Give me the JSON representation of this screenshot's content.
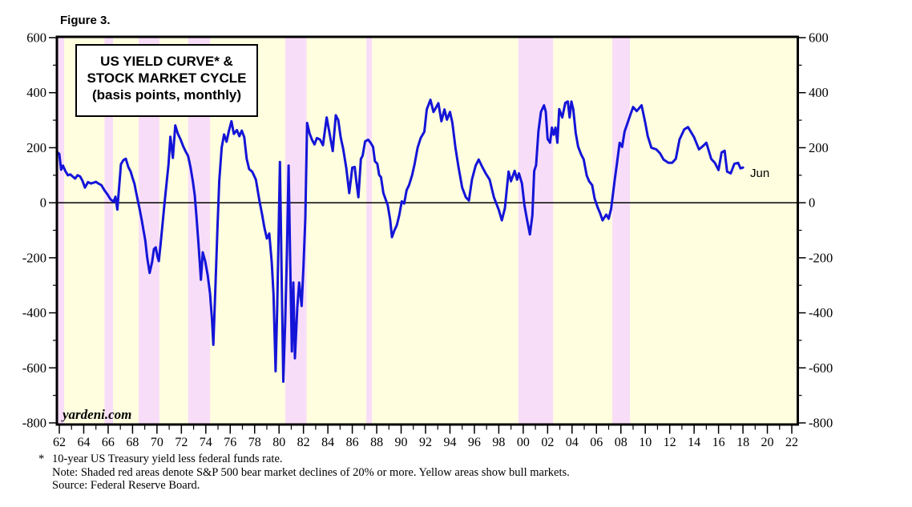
{
  "figure_label": "Figure 3.",
  "footnotes": {
    "asterisk": "*",
    "line1": "10-year US Treasury yield less federal funds rate.",
    "line2": "Note: Shaded red areas denote S&P 500 bear market declines of 20% or more. Yellow areas show bull markets.",
    "line3": "Source: Federal Reserve Board."
  },
  "chart_data": {
    "type": "line",
    "title": [
      "US YIELD CURVE* &",
      "STOCK MARKET CYCLE",
      "(basis points, monthly)"
    ],
    "watermark": "yardeni.com",
    "end_label": "Jun",
    "x_axis": {
      "start": 1962,
      "end": 2022,
      "label_step": 2,
      "tick_labels": [
        "62",
        "64",
        "66",
        "68",
        "70",
        "72",
        "74",
        "76",
        "78",
        "80",
        "82",
        "84",
        "86",
        "88",
        "90",
        "92",
        "94",
        "96",
        "98",
        "00",
        "02",
        "04",
        "06",
        "08",
        "10",
        "12",
        "14",
        "16",
        "18",
        "20",
        "22"
      ]
    },
    "y_axis": {
      "min": -800,
      "max": 600,
      "major_step": 200,
      "minor_step": 100,
      "tick_labels": [
        "600",
        "400",
        "200",
        "0",
        "-200",
        "-400",
        "-600",
        "-800"
      ],
      "both_sides": true
    },
    "zero_line": true,
    "colors": {
      "bull_background": "#ffffe0",
      "bear_band": "#f8ddf8",
      "line": "#1414d8",
      "frame": "#000000",
      "title_box_fill": "#ffffff"
    },
    "bear_market_bands": [
      [
        1961.75,
        1962.4
      ],
      [
        1965.7,
        1966.4
      ],
      [
        1968.5,
        1970.2
      ],
      [
        1972.55,
        1974.35
      ],
      [
        1980.5,
        1982.25
      ],
      [
        1987.15,
        1987.6
      ],
      [
        1999.6,
        2002.45
      ],
      [
        2007.3,
        2008.75
      ]
    ],
    "series": {
      "name": "US yield curve: 10-year Treasury yield less federal funds rate (bp)",
      "points": [
        [
          1961.8,
          185
        ],
        [
          1962.0,
          177
        ],
        [
          1962.15,
          120
        ],
        [
          1962.3,
          135
        ],
        [
          1962.5,
          115
        ],
        [
          1962.7,
          100
        ],
        [
          1962.9,
          103
        ],
        [
          1963.1,
          95
        ],
        [
          1963.3,
          88
        ],
        [
          1963.5,
          100
        ],
        [
          1963.7,
          96
        ],
        [
          1963.9,
          80
        ],
        [
          1964.1,
          55
        ],
        [
          1964.35,
          75
        ],
        [
          1964.6,
          70
        ],
        [
          1964.8,
          73
        ],
        [
          1965.0,
          76
        ],
        [
          1965.2,
          70
        ],
        [
          1965.45,
          64
        ],
        [
          1965.7,
          45
        ],
        [
          1965.95,
          30
        ],
        [
          1966.2,
          12
        ],
        [
          1966.45,
          4
        ],
        [
          1966.6,
          22
        ],
        [
          1966.75,
          -25
        ],
        [
          1966.9,
          55
        ],
        [
          1967.05,
          140
        ],
        [
          1967.25,
          155
        ],
        [
          1967.45,
          160
        ],
        [
          1967.65,
          130
        ],
        [
          1967.85,
          113
        ],
        [
          1968.0,
          90
        ],
        [
          1968.15,
          70
        ],
        [
          1968.35,
          26
        ],
        [
          1968.55,
          -17
        ],
        [
          1968.75,
          -62
        ],
        [
          1968.9,
          -101
        ],
        [
          1969.05,
          -139
        ],
        [
          1969.2,
          -200
        ],
        [
          1969.4,
          -255
        ],
        [
          1969.6,
          -215
        ],
        [
          1969.75,
          -168
        ],
        [
          1969.9,
          -162
        ],
        [
          1970.05,
          -197
        ],
        [
          1970.15,
          -212
        ],
        [
          1970.3,
          -150
        ],
        [
          1970.45,
          -81
        ],
        [
          1970.6,
          -10
        ],
        [
          1970.75,
          55
        ],
        [
          1970.95,
          140
        ],
        [
          1971.1,
          240
        ],
        [
          1971.3,
          163
        ],
        [
          1971.5,
          281
        ],
        [
          1971.7,
          252
        ],
        [
          1971.95,
          228
        ],
        [
          1972.15,
          205
        ],
        [
          1972.35,
          186
        ],
        [
          1972.55,
          170
        ],
        [
          1972.75,
          128
        ],
        [
          1972.95,
          75
        ],
        [
          1973.1,
          25
        ],
        [
          1973.25,
          -60
        ],
        [
          1973.4,
          -150
        ],
        [
          1973.6,
          -280
        ],
        [
          1973.75,
          -180
        ],
        [
          1973.95,
          -212
        ],
        [
          1974.15,
          -262
        ],
        [
          1974.35,
          -330
        ],
        [
          1974.5,
          -420
        ],
        [
          1974.62,
          -516
        ],
        [
          1974.8,
          -290
        ],
        [
          1974.95,
          -95
        ],
        [
          1975.1,
          80
        ],
        [
          1975.3,
          200
        ],
        [
          1975.5,
          248
        ],
        [
          1975.7,
          222
        ],
        [
          1975.9,
          262
        ],
        [
          1976.1,
          296
        ],
        [
          1976.3,
          250
        ],
        [
          1976.55,
          264
        ],
        [
          1976.75,
          242
        ],
        [
          1976.95,
          262
        ],
        [
          1977.15,
          238
        ],
        [
          1977.35,
          160
        ],
        [
          1977.55,
          122
        ],
        [
          1977.8,
          113
        ],
        [
          1978.1,
          84
        ],
        [
          1978.4,
          6
        ],
        [
          1978.6,
          -40
        ],
        [
          1978.8,
          -90
        ],
        [
          1979.0,
          -130
        ],
        [
          1979.2,
          -112
        ],
        [
          1979.4,
          -217
        ],
        [
          1979.55,
          -333
        ],
        [
          1979.72,
          -612
        ],
        [
          1979.85,
          -380
        ],
        [
          1979.95,
          -150
        ],
        [
          1980.07,
          148
        ],
        [
          1980.2,
          -220
        ],
        [
          1980.35,
          -650
        ],
        [
          1980.5,
          -440
        ],
        [
          1980.65,
          -175
        ],
        [
          1980.78,
          135
        ],
        [
          1980.92,
          -230
        ],
        [
          1981.05,
          -540
        ],
        [
          1981.17,
          -290
        ],
        [
          1981.3,
          -565
        ],
        [
          1981.5,
          -380
        ],
        [
          1981.65,
          -290
        ],
        [
          1981.85,
          -375
        ],
        [
          1982.0,
          -230
        ],
        [
          1982.15,
          -55
        ],
        [
          1982.3,
          290
        ],
        [
          1982.5,
          252
        ],
        [
          1982.7,
          229
        ],
        [
          1982.9,
          212
        ],
        [
          1983.1,
          235
        ],
        [
          1983.35,
          230
        ],
        [
          1983.6,
          209
        ],
        [
          1983.9,
          310
        ],
        [
          1984.1,
          261
        ],
        [
          1984.4,
          188
        ],
        [
          1984.65,
          318
        ],
        [
          1984.85,
          300
        ],
        [
          1985.05,
          238
        ],
        [
          1985.25,
          196
        ],
        [
          1985.5,
          128
        ],
        [
          1985.75,
          35
        ],
        [
          1986.0,
          128
        ],
        [
          1986.2,
          130
        ],
        [
          1986.35,
          72
        ],
        [
          1986.5,
          20
        ],
        [
          1986.7,
          159
        ],
        [
          1986.85,
          171
        ],
        [
          1987.05,
          223
        ],
        [
          1987.3,
          229
        ],
        [
          1987.5,
          218
        ],
        [
          1987.7,
          203
        ],
        [
          1987.85,
          151
        ],
        [
          1988.05,
          142
        ],
        [
          1988.2,
          101
        ],
        [
          1988.35,
          93
        ],
        [
          1988.55,
          35
        ],
        [
          1988.9,
          -9
        ],
        [
          1989.1,
          -61
        ],
        [
          1989.25,
          -125
        ],
        [
          1989.45,
          -100
        ],
        [
          1989.65,
          -81
        ],
        [
          1989.85,
          -45
        ],
        [
          1990.05,
          5
        ],
        [
          1990.25,
          -3
        ],
        [
          1990.45,
          46
        ],
        [
          1990.65,
          64
        ],
        [
          1990.9,
          100
        ],
        [
          1991.1,
          140
        ],
        [
          1991.35,
          200
        ],
        [
          1991.6,
          235
        ],
        [
          1991.9,
          258
        ],
        [
          1992.1,
          339
        ],
        [
          1992.4,
          374
        ],
        [
          1992.65,
          330
        ],
        [
          1992.85,
          345
        ],
        [
          1993.05,
          362
        ],
        [
          1993.3,
          296
        ],
        [
          1993.55,
          339
        ],
        [
          1993.75,
          302
        ],
        [
          1994.0,
          330
        ],
        [
          1994.2,
          290
        ],
        [
          1994.45,
          200
        ],
        [
          1994.7,
          130
        ],
        [
          1995.0,
          55
        ],
        [
          1995.3,
          20
        ],
        [
          1995.55,
          8
        ],
        [
          1995.8,
          84
        ],
        [
          1996.1,
          135
        ],
        [
          1996.35,
          157
        ],
        [
          1996.65,
          130
        ],
        [
          1996.95,
          105
        ],
        [
          1997.25,
          84
        ],
        [
          1997.6,
          20
        ],
        [
          1998.0,
          -26
        ],
        [
          1998.25,
          -64
        ],
        [
          1998.5,
          -20
        ],
        [
          1998.8,
          113
        ],
        [
          1999.0,
          78
        ],
        [
          1999.3,
          116
        ],
        [
          1999.5,
          84
        ],
        [
          1999.65,
          107
        ],
        [
          1999.9,
          70
        ],
        [
          2000.1,
          -9
        ],
        [
          2000.3,
          -58
        ],
        [
          2000.55,
          -115
        ],
        [
          2000.75,
          -46
        ],
        [
          2000.9,
          116
        ],
        [
          2001.05,
          136
        ],
        [
          2001.25,
          261
        ],
        [
          2001.45,
          330
        ],
        [
          2001.7,
          354
        ],
        [
          2001.85,
          331
        ],
        [
          2002.0,
          232
        ],
        [
          2002.2,
          218
        ],
        [
          2002.35,
          273
        ],
        [
          2002.5,
          247
        ],
        [
          2002.65,
          273
        ],
        [
          2002.8,
          218
        ],
        [
          2002.95,
          340
        ],
        [
          2003.2,
          310
        ],
        [
          2003.45,
          363
        ],
        [
          2003.65,
          368
        ],
        [
          2003.8,
          310
        ],
        [
          2003.95,
          368
        ],
        [
          2004.1,
          340
        ],
        [
          2004.3,
          253
        ],
        [
          2004.5,
          204
        ],
        [
          2004.75,
          175
        ],
        [
          2004.95,
          158
        ],
        [
          2005.2,
          99
        ],
        [
          2005.4,
          78
        ],
        [
          2005.65,
          64
        ],
        [
          2005.85,
          15
        ],
        [
          2006.1,
          -17
        ],
        [
          2006.3,
          -38
        ],
        [
          2006.5,
          -64
        ],
        [
          2006.8,
          -43
        ],
        [
          2007.0,
          -58
        ],
        [
          2007.2,
          -23
        ],
        [
          2007.5,
          84
        ],
        [
          2007.7,
          151
        ],
        [
          2007.9,
          218
        ],
        [
          2008.1,
          203
        ],
        [
          2008.3,
          258
        ],
        [
          2008.7,
          310
        ],
        [
          2009.0,
          348
        ],
        [
          2009.3,
          333
        ],
        [
          2009.7,
          354
        ],
        [
          2010.0,
          290
        ],
        [
          2010.2,
          243
        ],
        [
          2010.5,
          200
        ],
        [
          2010.9,
          194
        ],
        [
          2011.2,
          180
        ],
        [
          2011.5,
          157
        ],
        [
          2011.9,
          145
        ],
        [
          2012.2,
          145
        ],
        [
          2012.5,
          160
        ],
        [
          2012.8,
          230
        ],
        [
          2013.2,
          267
        ],
        [
          2013.5,
          275
        ],
        [
          2014.0,
          238
        ],
        [
          2014.4,
          194
        ],
        [
          2014.8,
          209
        ],
        [
          2015.0,
          218
        ],
        [
          2015.4,
          159
        ],
        [
          2015.7,
          145
        ],
        [
          2016.0,
          119
        ],
        [
          2016.25,
          183
        ],
        [
          2016.5,
          189
        ],
        [
          2016.7,
          113
        ],
        [
          2017.0,
          107
        ],
        [
          2017.3,
          142
        ],
        [
          2017.6,
          145
        ],
        [
          2017.8,
          125
        ],
        [
          2018.0,
          128
        ]
      ]
    }
  }
}
